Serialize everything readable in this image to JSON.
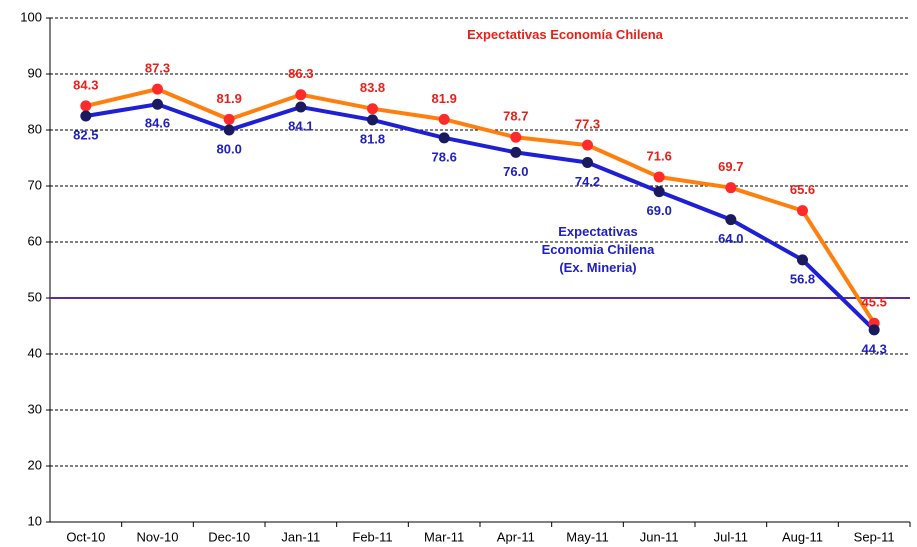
{
  "chart_data": {
    "type": "line",
    "categories": [
      "Oct-10",
      "Nov-10",
      "Dec-10",
      "Jan-11",
      "Feb-11",
      "Mar-11",
      "Apr-11",
      "May-11",
      "Jun-11",
      "Jul-11",
      "Aug-11",
      "Sep-11"
    ],
    "series": [
      {
        "name": "Expectativas Economía Chilena",
        "color": "#ff7f0e",
        "marker_color": "#ff2a2a",
        "label_color": "#e8201a",
        "values": [
          84.3,
          87.3,
          81.9,
          86.3,
          83.8,
          81.9,
          78.7,
          77.3,
          71.6,
          69.7,
          65.6,
          45.5
        ],
        "value_labels": [
          "84.3",
          "87.3",
          "81.9",
          "86.3",
          "83.8",
          "81.9",
          "78.7",
          "77.3",
          "71.6",
          "69.7",
          "65.6",
          "45.5"
        ]
      },
      {
        "name": "Expectativas Economia Chilena (Ex. Mineria)",
        "color": "#1f1fd6",
        "marker_color": "#1a1a5e",
        "label_color": "#2020c0",
        "values": [
          82.5,
          84.6,
          80.0,
          84.1,
          81.8,
          78.6,
          76.0,
          74.2,
          69.0,
          64.0,
          56.8,
          44.3
        ],
        "value_labels": [
          "82.5",
          "84.6",
          "80.0",
          "84.1",
          "81.8",
          "78.6",
          "76.0",
          "74.2",
          "69.0",
          "64.0",
          "56.8",
          "44.3"
        ]
      }
    ],
    "reference_line": {
      "value": 50,
      "color": "#5a2ca0"
    },
    "ylim": [
      10,
      100
    ],
    "yticks": [
      10,
      20,
      30,
      40,
      50,
      60,
      70,
      80,
      90,
      100
    ],
    "grid": true
  }
}
